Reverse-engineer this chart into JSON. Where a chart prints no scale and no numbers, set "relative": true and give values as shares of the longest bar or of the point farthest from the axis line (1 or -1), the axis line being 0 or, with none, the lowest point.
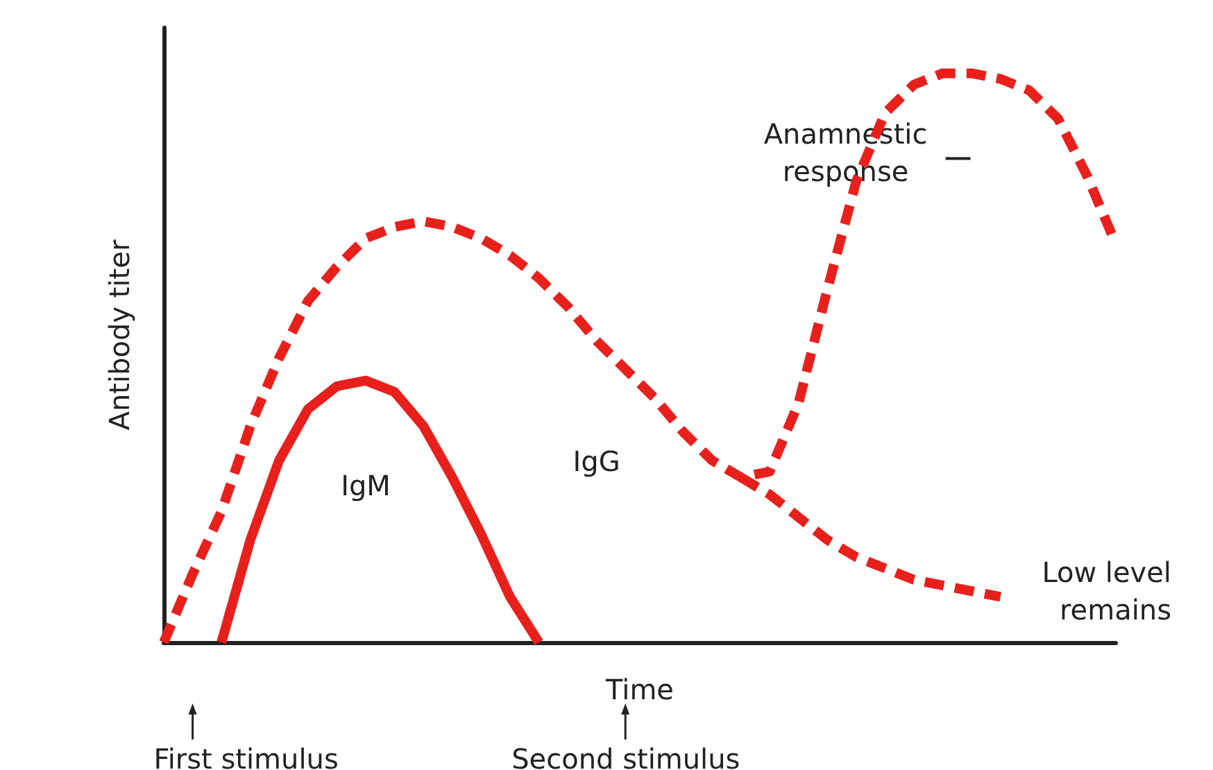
{
  "chart_data": {
    "type": "line",
    "relative": true,
    "xlabel": "Time",
    "ylabel": "Antibody titer",
    "grid": false,
    "legend": false,
    "marker": "none",
    "categories": [
      null,
      null,
      null,
      null,
      null,
      null,
      null,
      null,
      null,
      null,
      null,
      null,
      null,
      null,
      null,
      null,
      null,
      null,
      null,
      null,
      null,
      null,
      null,
      null,
      null,
      null,
      null,
      null,
      null,
      null,
      null,
      null,
      null,
      null
    ],
    "series": [
      {
        "name": "IgM",
        "color": "#e8201c",
        "line_style": "solid",
        "values": [
          null,
          null,
          0,
          0.18,
          0.32,
          0.41,
          0.45,
          0.46,
          0.44,
          0.38,
          0.29,
          0.19,
          0.08,
          0,
          null,
          null,
          null,
          null,
          null,
          null,
          null,
          null,
          null,
          null,
          null,
          null,
          null,
          null,
          null,
          null,
          null,
          null,
          null,
          null
        ]
      },
      {
        "name": "IgG",
        "color": "#e8201c",
        "line_style": "dashed",
        "values": [
          0,
          0.12,
          0.23,
          0.38,
          0.5,
          0.6,
          0.66,
          0.71,
          0.73,
          0.74,
          0.73,
          0.71,
          0.68,
          0.64,
          0.59,
          0.53,
          0.48,
          0.43,
          0.37,
          0.32,
          0.29,
          0.3,
          0.42,
          0.62,
          0.81,
          0.93,
          0.98,
          1,
          1,
          0.99,
          0.97,
          0.92,
          0.82,
          0.7
        ]
      },
      {
        "color": "#e8201c",
        "line_style": "dashed",
        "values": [
          null,
          null,
          null,
          null,
          null,
          null,
          null,
          null,
          null,
          null,
          null,
          null,
          null,
          null,
          null,
          null,
          null,
          null,
          null,
          null,
          0.29,
          0.26,
          0.22,
          0.18,
          0.15,
          0.13,
          0.11,
          0.1,
          0.09,
          0.08,
          null,
          null,
          null,
          null
        ]
      }
    ],
    "annotations": [
      "First stimulus",
      "Second stimulus",
      "Anamnestic response",
      "Low level remains"
    ]
  }
}
